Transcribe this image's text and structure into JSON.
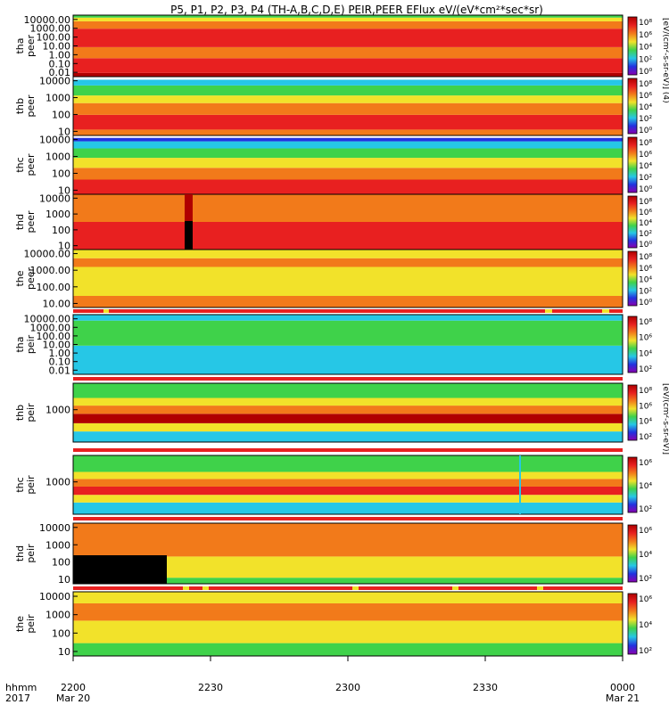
{
  "title": "P5, P1, P2, P3, P4 (TH-A,B,C,D,E) PEIR,PEER EFlux eV/(eV*cm²*sec*sr)",
  "x_axis": {
    "row_label_1": "hhmm",
    "row_label_2": "2017",
    "ticks": [
      {
        "label": "2200",
        "sub": "Mar 20"
      },
      {
        "label": "2230",
        "sub": ""
      },
      {
        "label": "2300",
        "sub": ""
      },
      {
        "label": "2330",
        "sub": ""
      },
      {
        "label": "0000",
        "sub": "Mar 21"
      }
    ]
  },
  "colorbar_label_upper": "[eV/(cm²-s-sr-eV)] (4)",
  "colorbar_label_lower": "[eV/(cm²-s-sr-eV)]",
  "colors": {
    "dark_red": "#b00000",
    "red": "#e82020",
    "orange": "#f27a1a",
    "yellow": "#f2e22a",
    "green": "#3fd24a",
    "cyan": "#26c7e6",
    "blue": "#2232e0",
    "black": "#000000",
    "white": "#ffffff"
  },
  "chart_data": {
    "type": "heatmap",
    "x_range": [
      "2017-03-20 22:00",
      "2017-03-21 00:00"
    ],
    "z_scale": "log",
    "panels": [
      {
        "name": "tha peer",
        "line1": "tha",
        "line2": "peer",
        "y_scale": "log",
        "ylim": [
          0.01,
          30000
        ],
        "yticks": [
          "10000.00",
          "1000.00",
          "100.00",
          "10.00",
          "1.00",
          "0.10",
          "0.01"
        ],
        "cbar_ticks": [
          "10⁸",
          "10⁶",
          "10⁴",
          "10²",
          "10⁰"
        ],
        "bands": [
          [
            "dark_red",
            0.06,
            0.0
          ],
          [
            "red",
            0.3,
            0.06
          ],
          [
            "orange",
            0.48,
            0.3
          ],
          [
            "red",
            0.78,
            0.48
          ],
          [
            "orange",
            0.9,
            0.78
          ],
          [
            "yellow",
            0.96,
            0.9
          ],
          [
            "green",
            1.0,
            0.96
          ]
        ]
      },
      {
        "name": "thb peer",
        "line1": "thb",
        "line2": "peer",
        "y_scale": "log",
        "ylim": [
          5,
          20000
        ],
        "yticks": [
          "10000",
          "1000",
          "100",
          "10"
        ],
        "cbar_ticks": [
          "10⁸",
          "10⁶",
          "10⁴",
          "10²",
          "10⁰"
        ],
        "bands": [
          [
            "orange",
            0.1,
            0.0
          ],
          [
            "red",
            0.35,
            0.1
          ],
          [
            "orange",
            0.55,
            0.35
          ],
          [
            "yellow",
            0.68,
            0.55
          ],
          [
            "green",
            0.85,
            0.68
          ],
          [
            "cyan",
            0.95,
            0.85
          ],
          [
            "white",
            1.0,
            0.95
          ]
        ]
      },
      {
        "name": "thc peer",
        "line1": "thc",
        "line2": "peer",
        "y_scale": "log",
        "ylim": [
          5,
          20000
        ],
        "yticks": [
          "10000",
          "1000",
          "100",
          "10"
        ],
        "cbar_ticks": [
          "10⁸",
          "10⁶",
          "10⁴",
          "10²",
          "10⁰"
        ],
        "bands": [
          [
            "red",
            0.25,
            0.0
          ],
          [
            "orange",
            0.45,
            0.25
          ],
          [
            "yellow",
            0.62,
            0.45
          ],
          [
            "green",
            0.78,
            0.62
          ],
          [
            "cyan",
            0.9,
            0.78
          ],
          [
            "blue",
            0.96,
            0.9
          ],
          [
            "white",
            1.0,
            0.96
          ]
        ]
      },
      {
        "name": "thd peer",
        "line1": "thd",
        "line2": "peer",
        "y_scale": "log",
        "ylim": [
          5,
          20000
        ],
        "yticks": [
          "10000",
          "1000",
          "100",
          "10"
        ],
        "cbar_ticks": [
          "10⁸",
          "10⁶",
          "10⁴",
          "10²",
          "10⁰"
        ],
        "bands": [
          [
            "red",
            0.5,
            0.0
          ],
          [
            "orange",
            1.0,
            0.5
          ]
        ]
      },
      {
        "name": "the peer",
        "line1": "the",
        "line2": "peer",
        "y_scale": "log",
        "ylim": [
          5,
          20000
        ],
        "yticks": [
          "10000.00",
          "1000.00",
          "100.00",
          "10.00"
        ],
        "cbar_ticks": [
          "10⁸",
          "10⁶",
          "10⁴",
          "10²",
          "10⁰"
        ],
        "bands": [
          [
            "orange",
            0.2,
            0.0
          ],
          [
            "yellow",
            0.7,
            0.2
          ],
          [
            "orange",
            0.85,
            0.7
          ],
          [
            "yellow",
            1.0,
            0.85
          ]
        ]
      },
      {
        "name": "tha peir",
        "line1": "tha",
        "line2": "peir",
        "y_scale": "log",
        "ylim": [
          0.01,
          30000
        ],
        "yticks": [
          "10000.00",
          "1000.00",
          "100.00",
          "10.00",
          "1.00",
          "0.10",
          "0.01"
        ],
        "cbar_ticks": [
          "10⁸",
          "10⁶",
          "10⁴",
          "10²"
        ],
        "bands": [
          [
            "cyan",
            0.48,
            0.0
          ],
          [
            "green",
            0.9,
            0.48
          ],
          [
            "cyan",
            1.0,
            0.9
          ]
        ]
      },
      {
        "name": "thb peir",
        "line1": "thb",
        "line2": "peir",
        "y_scale": "log",
        "ylim": [
          8,
          40000
        ],
        "yticks": [
          "1000"
        ],
        "cbar_ticks": [
          "10⁸",
          "10⁶",
          "10⁴",
          "10²"
        ],
        "bands": [
          [
            "cyan",
            0.18,
            0.0
          ],
          [
            "yellow",
            0.32,
            0.18
          ],
          [
            "dark_red",
            0.48,
            0.32
          ],
          [
            "orange",
            0.62,
            0.48
          ],
          [
            "yellow",
            0.75,
            0.62
          ],
          [
            "green",
            1.0,
            0.75
          ]
        ]
      },
      {
        "name": "thc peir",
        "line1": "thc",
        "line2": "peir",
        "y_scale": "log",
        "ylim": [
          8,
          40000
        ],
        "yticks": [
          "1000"
        ],
        "cbar_ticks": [
          "10⁶",
          "10⁴",
          "10²"
        ],
        "bands": [
          [
            "cyan",
            0.2,
            0.0
          ],
          [
            "yellow",
            0.33,
            0.2
          ],
          [
            "red",
            0.47,
            0.33
          ],
          [
            "orange",
            0.6,
            0.47
          ],
          [
            "yellow",
            0.72,
            0.6
          ],
          [
            "green",
            1.0,
            0.72
          ]
        ]
      },
      {
        "name": "thd peir",
        "line1": "thd",
        "line2": "peir",
        "y_scale": "log",
        "ylim": [
          5,
          20000
        ],
        "yticks": [
          "10000",
          "1000",
          "100",
          "10"
        ],
        "cbar_ticks": [
          "10⁶",
          "10⁴",
          "10²"
        ],
        "bands": [
          [
            "green",
            0.1,
            0.0
          ],
          [
            "yellow",
            0.45,
            0.1
          ],
          [
            "orange",
            1.0,
            0.45
          ]
        ]
      },
      {
        "name": "the peir",
        "line1": "the",
        "line2": "peir",
        "y_scale": "log",
        "ylim": [
          5,
          20000
        ],
        "yticks": [
          "10000",
          "1000",
          "100",
          "10"
        ],
        "cbar_ticks": [
          "10⁶",
          "10⁴",
          "10²"
        ],
        "bands": [
          [
            "green",
            0.2,
            0.0
          ],
          [
            "yellow",
            0.55,
            0.2
          ],
          [
            "orange",
            0.82,
            0.55
          ],
          [
            "yellow",
            1.0,
            0.82
          ]
        ]
      }
    ]
  }
}
